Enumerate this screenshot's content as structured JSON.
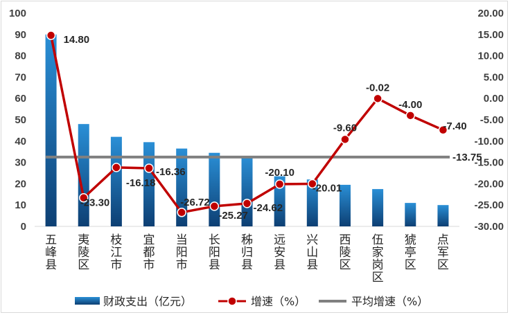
{
  "chart_data": {
    "type": "bar+line",
    "categories": [
      "五峰县",
      "夷陵区",
      "枝江市",
      "宜都市",
      "当阳市",
      "长阳县",
      "秭归县",
      "远安县",
      "兴山县",
      "西陵区",
      "伍家岗区",
      "猇亭区",
      "点军区"
    ],
    "series": [
      {
        "name": "财政支出（亿元）",
        "type": "bar",
        "axis": "left",
        "values": [
          90,
          48,
          42,
          39.5,
          36.5,
          34.5,
          33,
          23.5,
          22,
          19.5,
          17.5,
          11,
          10
        ]
      },
      {
        "name": "增速（%）",
        "type": "line",
        "axis": "right",
        "values": [
          14.8,
          -23.3,
          -16.18,
          -16.36,
          -26.72,
          -25.27,
          -24.62,
          -20.1,
          -20.01,
          -9.6,
          -0.02,
          -4.0,
          -7.4
        ],
        "labels": [
          "14.80",
          "-23.30",
          "-16.18",
          "-16.36",
          "-26.72",
          "-25.27",
          "-24.62",
          "-20.10",
          "-20.01",
          "-9.60",
          "-0.02",
          "-4.00",
          "-7.40"
        ]
      },
      {
        "name": "平均增速（%）",
        "type": "line",
        "axis": "right",
        "value": -13.75,
        "label": "-13.75"
      }
    ],
    "left_axis": {
      "min": 0,
      "max": 100,
      "step": 10,
      "tick_labels": [
        "0",
        "10",
        "20",
        "30",
        "40",
        "50",
        "60",
        "70",
        "80",
        "90",
        "100"
      ]
    },
    "right_axis": {
      "min": -30,
      "max": 20,
      "step": 5,
      "tick_labels": [
        "-30.00",
        "-25.00",
        "-20.00",
        "-15.00",
        "-10.00",
        "-5.00",
        "0.00",
        "5.00",
        "10.00",
        "15.00",
        "20.00"
      ]
    },
    "legend_position": "bottom",
    "colors": {
      "bar_top": "#2a8fd6",
      "bar_bottom": "#0d3f73",
      "line": "#c00000",
      "marker_fill": "#c00000",
      "avg": "#808080"
    }
  }
}
